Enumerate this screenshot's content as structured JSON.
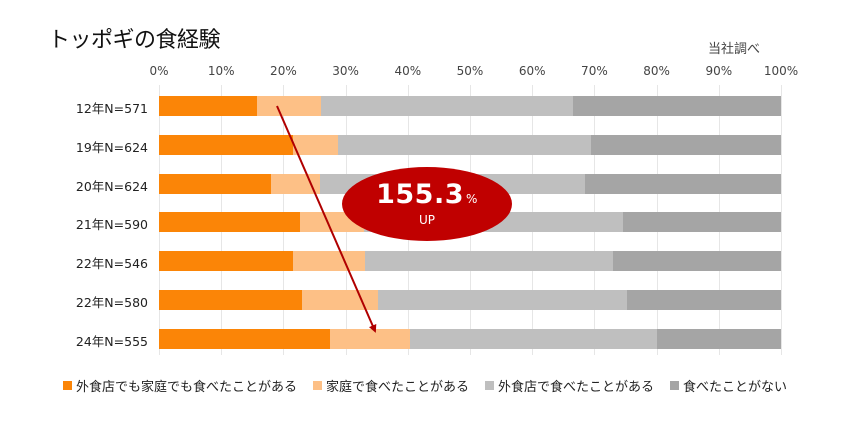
{
  "title": "トッポギの食経験",
  "source_note": "当社調べ",
  "chart_data": {
    "type": "bar",
    "orientation": "horizontal",
    "stacked": "100%",
    "title": "トッポギの食経験",
    "xlabel": "",
    "ylabel": "",
    "xlim": [
      0,
      100
    ],
    "x_ticks": [
      "0%",
      "10%",
      "20%",
      "30%",
      "40%",
      "50%",
      "60%",
      "70%",
      "80%",
      "90%",
      "100%"
    ],
    "grid": true,
    "legend_position": "bottom",
    "categories": [
      "12年N=571",
      "19年N=624",
      "20年N=624",
      "21年N=590",
      "22年N=546",
      "22年N=580",
      "24年N=555"
    ],
    "series": [
      {
        "name": "外食店でも家庭でも食べたことがある",
        "color": "#fb8507",
        "values": [
          15.8,
          21.5,
          18.0,
          22.7,
          21.5,
          23.0,
          27.5
        ]
      },
      {
        "name": "家庭で食べたことがある",
        "color": "#fdc086",
        "values": [
          10.2,
          7.3,
          7.9,
          10.2,
          11.6,
          12.2,
          12.9
        ]
      },
      {
        "name": "外食店で食べたことがある",
        "color": "#bfbfbf",
        "values": [
          40.6,
          40.7,
          42.6,
          41.7,
          39.9,
          40.0,
          39.7
        ]
      },
      {
        "name": "食べたことがない",
        "color": "#a5a5a5",
        "values": [
          33.4,
          30.5,
          31.5,
          25.4,
          27.0,
          24.8,
          19.9
        ]
      }
    ],
    "annotations": [
      {
        "type": "callout",
        "text": "155.3",
        "unit": "%",
        "subtext": "UP",
        "color": "#c00000"
      },
      {
        "type": "arrow",
        "from": "12年N=571 (~19%)",
        "to": "24年N=555 (~35%)",
        "color": "#b00000"
      }
    ]
  },
  "callout": {
    "value": "155.3",
    "unit": "%",
    "sub": "UP"
  }
}
